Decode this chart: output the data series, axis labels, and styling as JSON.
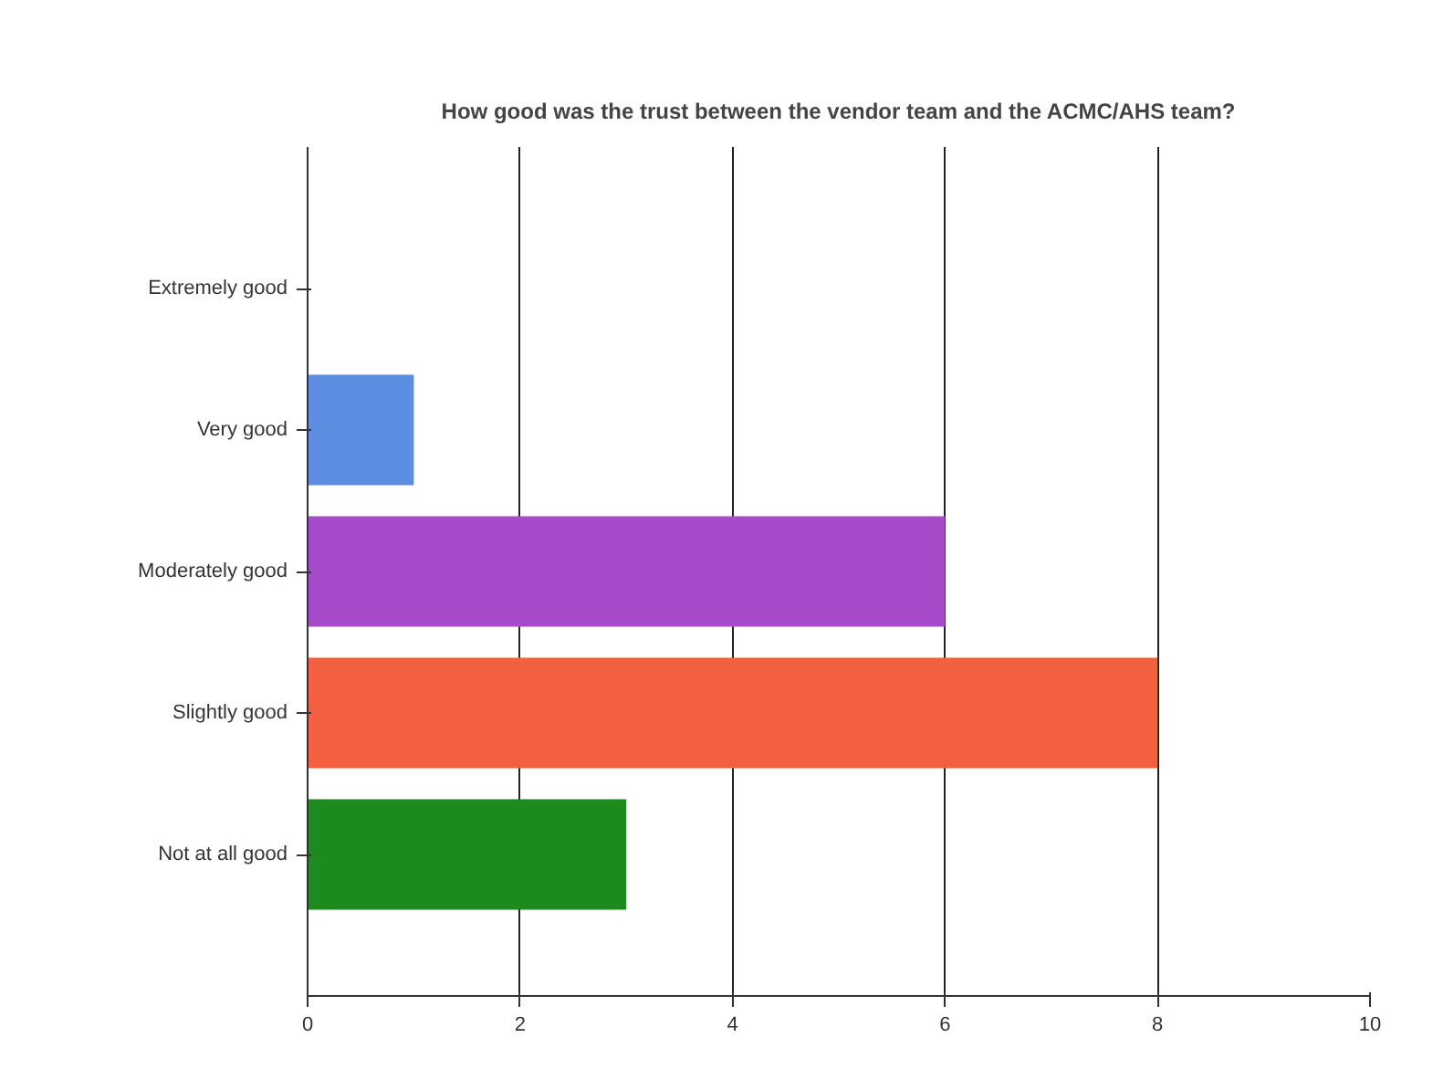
{
  "chart_data": {
    "type": "bar",
    "orientation": "horizontal",
    "title": "How good was the trust between the vendor team and the ACMC/AHS team?",
    "categories": [
      "Extremely good",
      "Very good",
      "Moderately good",
      "Slightly good",
      "Not at all good"
    ],
    "values": [
      0,
      1,
      6,
      8,
      3
    ],
    "colors": [
      "#5b8de0",
      "#5b8de0",
      "#a64ac9",
      "#f2603f",
      "#1c8a1c"
    ],
    "xlim": [
      0,
      10
    ],
    "xticks": [
      0,
      2,
      4,
      6,
      8,
      10
    ],
    "grid": "x"
  }
}
